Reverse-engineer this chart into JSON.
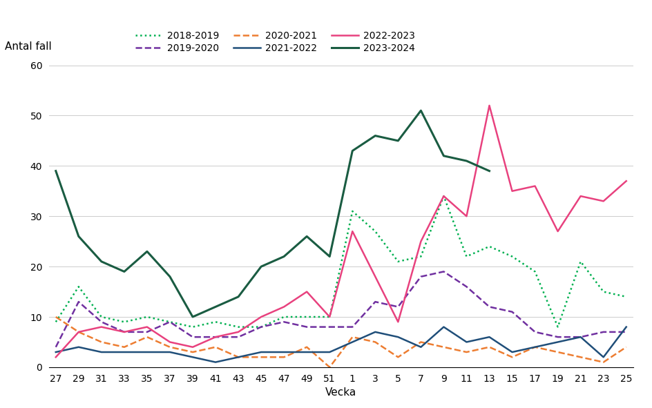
{
  "xlabel": "Vecka",
  "ylabel": "Antal fall",
  "ylim": [
    0,
    60
  ],
  "yticks": [
    0,
    10,
    20,
    30,
    40,
    50,
    60
  ],
  "x_labels": [
    "27",
    "29",
    "31",
    "33",
    "35",
    "37",
    "39",
    "41",
    "43",
    "45",
    "47",
    "49",
    "51",
    "1",
    "3",
    "5",
    "7",
    "9",
    "11",
    "13",
    "15",
    "17",
    "19",
    "21",
    "23",
    "25"
  ],
  "series_order": [
    "2018-2019",
    "2019-2020",
    "2020-2021",
    "2021-2022",
    "2022-2023",
    "2023-2024"
  ],
  "series": {
    "2018-2019": {
      "color": "#00b050",
      "linestyle": "dotted",
      "linewidth": 1.8,
      "values": [
        9,
        16,
        10,
        9,
        10,
        9,
        8,
        9,
        8,
        8,
        10,
        10,
        10,
        31,
        27,
        21,
        22,
        34,
        22,
        24,
        22,
        19,
        8,
        21,
        15,
        14
      ]
    },
    "2019-2020": {
      "color": "#7030a0",
      "linestyle": "dashed",
      "linewidth": 1.8,
      "values": [
        4,
        13,
        9,
        7,
        7,
        9,
        6,
        6,
        6,
        8,
        9,
        8,
        8,
        8,
        13,
        12,
        18,
        19,
        16,
        12,
        11,
        7,
        6,
        6,
        7,
        7
      ]
    },
    "2020-2021": {
      "color": "#ed7d31",
      "linestyle": "dashed",
      "linewidth": 1.8,
      "values": [
        10,
        7,
        5,
        4,
        6,
        4,
        3,
        4,
        2,
        2,
        2,
        4,
        0,
        6,
        5,
        2,
        5,
        4,
        3,
        4,
        2,
        4,
        3,
        2,
        1,
        4
      ]
    },
    "2021-2022": {
      "color": "#1f4e79",
      "linestyle": "solid",
      "linewidth": 1.8,
      "values": [
        3,
        4,
        3,
        3,
        3,
        3,
        2,
        1,
        2,
        3,
        3,
        3,
        3,
        5,
        7,
        6,
        4,
        8,
        5,
        6,
        3,
        4,
        5,
        6,
        2,
        8
      ]
    },
    "2022-2023": {
      "color": "#e8417e",
      "linestyle": "solid",
      "linewidth": 1.8,
      "values": [
        2,
        7,
        8,
        7,
        8,
        5,
        4,
        6,
        7,
        10,
        12,
        15,
        10,
        27,
        18,
        9,
        25,
        34,
        30,
        52,
        35,
        36,
        27,
        34,
        33,
        37
      ]
    },
    "2023-2024": {
      "color": "#1a5c42",
      "linestyle": "solid",
      "linewidth": 2.2,
      "values": [
        39,
        26,
        21,
        19,
        23,
        18,
        10,
        12,
        14,
        20,
        22,
        26,
        22,
        43,
        46,
        45,
        51,
        42,
        41,
        39,
        null,
        null,
        null,
        null,
        null,
        null
      ]
    }
  },
  "legend_ncol": 3,
  "legend_rows": [
    [
      "2018-2019",
      "2019-2020",
      "2020-2021"
    ],
    [
      "2021-2022",
      "2022-2023",
      "2023-2024"
    ]
  ]
}
